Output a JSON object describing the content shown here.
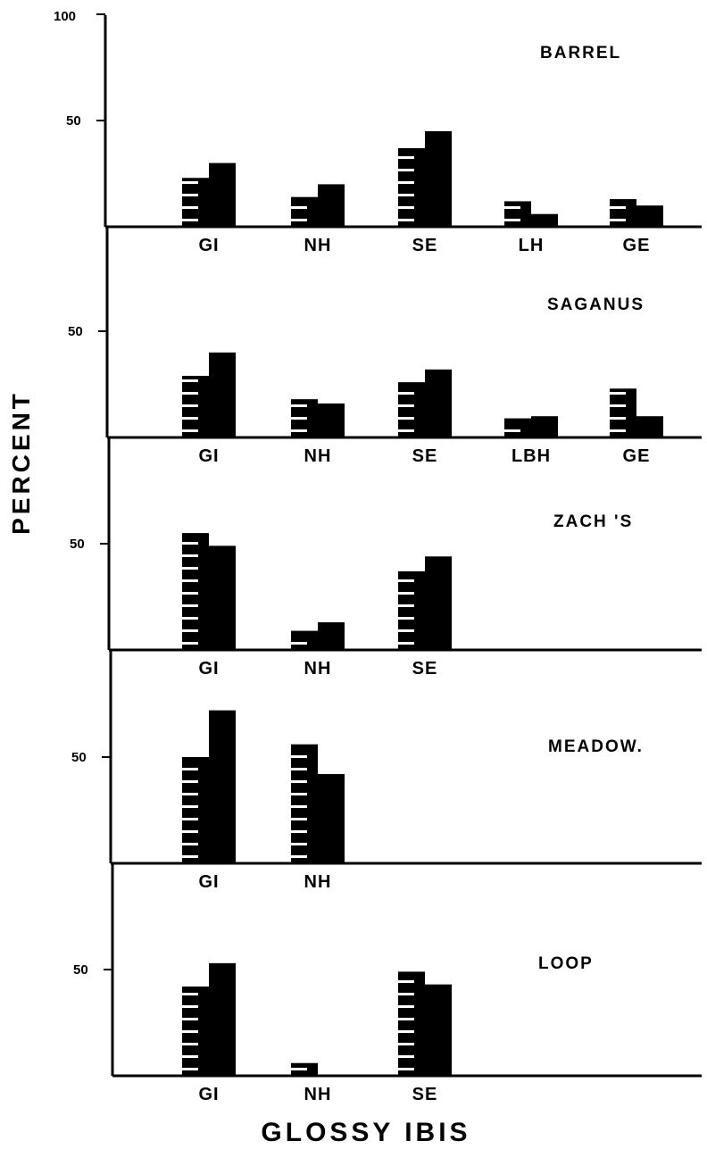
{
  "chart_data": {
    "type": "bar",
    "xlabel": "GLOSSY IBIS",
    "ylabel": "PERCENT",
    "y_tick_labels": [
      "100",
      "50"
    ],
    "ylim": [
      0,
      100
    ],
    "legend": "none",
    "grid": false,
    "bar_styles": [
      "striped",
      "solid"
    ],
    "panels": [
      {
        "title": "BARREL",
        "categories": [
          "GI",
          "NH",
          "SE",
          "LH",
          "GE"
        ],
        "series": [
          {
            "values": [
              23,
              14,
              37,
              12,
              13
            ]
          },
          {
            "values": [
              30,
              20,
              45,
              6,
              10
            ]
          }
        ]
      },
      {
        "title": "SAGANUS",
        "categories": [
          "GI",
          "NH",
          "SE",
          "LBH",
          "GE"
        ],
        "series": [
          {
            "values": [
              29,
              18,
              26,
              9,
              23
            ]
          },
          {
            "values": [
              40,
              16,
              32,
              10,
              10
            ]
          }
        ]
      },
      {
        "title": "ZACH 'S",
        "categories": [
          "GI",
          "NH",
          "SE"
        ],
        "series": [
          {
            "values": [
              55,
              9,
              37
            ]
          },
          {
            "values": [
              49,
              13,
              44
            ]
          }
        ]
      },
      {
        "title": "MEADOW.",
        "categories": [
          "GI",
          "NH"
        ],
        "series": [
          {
            "values": [
              50,
              56
            ]
          },
          {
            "values": [
              72,
              42
            ]
          }
        ]
      },
      {
        "title": "LOOP",
        "categories": [
          "GI",
          "NH",
          "SE"
        ],
        "series": [
          {
            "values": [
              42,
              6,
              49
            ]
          },
          {
            "values": [
              53,
              0,
              43
            ]
          }
        ]
      }
    ]
  }
}
